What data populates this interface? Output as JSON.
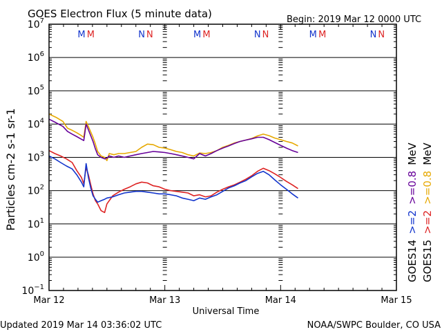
{
  "header": {
    "title": "GOES Electron Flux (5 minute data)",
    "begin": "Begin: 2019 Mar 12 0000 UTC"
  },
  "footer": {
    "updated": "Updated 2019 Mar 14 03:36:02 UTC",
    "credit": "NOAA/SWPC Boulder, CO USA"
  },
  "colors": {
    "goes14_e08": "#660099",
    "goes15_e08": "#e6a800",
    "goes14_e2": "#1133cc",
    "goes15_e2": "#dd2222",
    "grid": "#000000",
    "threshold": "#000000"
  },
  "chart_data": {
    "type": "line",
    "title": "GOES Electron Flux (5 minute data)",
    "xlabel": "Universal Time",
    "ylabel": "Particles cm-2 s-1 sr-1",
    "x_unit": "days since 2019 Mar 12 00:00 UTC",
    "xlim": [
      0,
      3
    ],
    "ylim_log10": [
      -1,
      7
    ],
    "x_ticks": [
      {
        "x": 0,
        "label": "Mar 12"
      },
      {
        "x": 1,
        "label": "Mar 13"
      },
      {
        "x": 2,
        "label": "Mar 14"
      },
      {
        "x": 3,
        "label": "Mar 15"
      }
    ],
    "y_ticks": [
      {
        "exp": 7,
        "base": "10",
        "sup": "7"
      },
      {
        "exp": 6,
        "base": "10",
        "sup": "6"
      },
      {
        "exp": 5,
        "base": "10",
        "sup": "5"
      },
      {
        "exp": 4,
        "base": "10",
        "sup": "4"
      },
      {
        "exp": 3,
        "base": "10",
        "sup": "3"
      },
      {
        "exp": 2,
        "base": "10",
        "sup": "2"
      },
      {
        "exp": 1,
        "base": "10",
        "sup": "1"
      },
      {
        "exp": 0,
        "base": "10",
        "sup": "0"
      },
      {
        "exp": -1,
        "base": "10",
        "sup": "−1"
      }
    ],
    "threshold": 1000,
    "markers": [
      {
        "text": "M",
        "x": 0.28,
        "color_key": "goes14_e2"
      },
      {
        "text": "M",
        "x": 0.36,
        "color_key": "goes15_e2"
      },
      {
        "text": "N",
        "x": 0.8,
        "color_key": "goes14_e2"
      },
      {
        "text": "N",
        "x": 0.87,
        "color_key": "goes15_e2"
      },
      {
        "text": "M",
        "x": 1.28,
        "color_key": "goes14_e2"
      },
      {
        "text": "M",
        "x": 1.36,
        "color_key": "goes15_e2"
      },
      {
        "text": "N",
        "x": 1.8,
        "color_key": "goes14_e2"
      },
      {
        "text": "N",
        "x": 1.87,
        "color_key": "goes15_e2"
      },
      {
        "text": "M",
        "x": 2.28,
        "color_key": "goes14_e2"
      },
      {
        "text": "M",
        "x": 2.36,
        "color_key": "goes15_e2"
      },
      {
        "text": "N",
        "x": 2.8,
        "color_key": "goes14_e2"
      },
      {
        "text": "N",
        "x": 2.87,
        "color_key": "goes15_e2"
      }
    ],
    "legend": [
      {
        "lines": [
          {
            "text": "GOES14",
            "color_key": "threshold"
          },
          {
            "text": ">=2",
            "color_key": "goes14_e2"
          },
          {
            "text": ">=0.8",
            "color_key": "goes14_e08"
          },
          {
            "text": "MeV",
            "color_key": "threshold"
          }
        ]
      },
      {
        "lines": [
          {
            "text": "GOES15",
            "color_key": "threshold"
          },
          {
            "text": ">=2",
            "color_key": "goes15_e2"
          },
          {
            "text": ">=0.8",
            "color_key": "goes15_e08"
          },
          {
            "text": "MeV",
            "color_key": "threshold"
          }
        ]
      }
    ],
    "series": [
      {
        "name": "GOES15 >=0.8 MeV",
        "color_key": "goes15_e08",
        "points": [
          [
            0.0,
            20000
          ],
          [
            0.06,
            16000
          ],
          [
            0.12,
            12000
          ],
          [
            0.16,
            7500
          ],
          [
            0.2,
            6500
          ],
          [
            0.24,
            5500
          ],
          [
            0.28,
            4500
          ],
          [
            0.3,
            4000
          ],
          [
            0.32,
            12000
          ],
          [
            0.35,
            7000
          ],
          [
            0.38,
            4000
          ],
          [
            0.4,
            2500
          ],
          [
            0.42,
            1500
          ],
          [
            0.45,
            1100
          ],
          [
            0.48,
            1000
          ],
          [
            0.5,
            800
          ],
          [
            0.52,
            1300
          ],
          [
            0.56,
            1200
          ],
          [
            0.6,
            1300
          ],
          [
            0.65,
            1300
          ],
          [
            0.7,
            1400
          ],
          [
            0.75,
            1500
          ],
          [
            0.8,
            2000
          ],
          [
            0.85,
            2500
          ],
          [
            0.9,
            2400
          ],
          [
            0.95,
            2000
          ],
          [
            1.0,
            1900
          ],
          [
            1.05,
            1700
          ],
          [
            1.1,
            1500
          ],
          [
            1.15,
            1400
          ],
          [
            1.2,
            1200
          ],
          [
            1.25,
            1100
          ],
          [
            1.3,
            1350
          ],
          [
            1.35,
            1300
          ],
          [
            1.4,
            1400
          ],
          [
            1.45,
            1600
          ],
          [
            1.5,
            2000
          ],
          [
            1.55,
            2300
          ],
          [
            1.6,
            2700
          ],
          [
            1.65,
            3000
          ],
          [
            1.7,
            3300
          ],
          [
            1.75,
            3700
          ],
          [
            1.8,
            4400
          ],
          [
            1.85,
            5000
          ],
          [
            1.9,
            4500
          ],
          [
            1.95,
            3800
          ],
          [
            2.0,
            3400
          ],
          [
            2.05,
            3000
          ],
          [
            2.1,
            2700
          ],
          [
            2.15,
            2200
          ]
        ]
      },
      {
        "name": "GOES14 >=0.8 MeV",
        "color_key": "goes14_e08",
        "points": [
          [
            0.0,
            14000
          ],
          [
            0.06,
            11000
          ],
          [
            0.12,
            8500
          ],
          [
            0.16,
            6000
          ],
          [
            0.2,
            5000
          ],
          [
            0.24,
            4200
          ],
          [
            0.28,
            3500
          ],
          [
            0.3,
            3200
          ],
          [
            0.32,
            10000
          ],
          [
            0.35,
            5500
          ],
          [
            0.38,
            3000
          ],
          [
            0.4,
            1800
          ],
          [
            0.42,
            1200
          ],
          [
            0.45,
            1000
          ],
          [
            0.48,
            900
          ],
          [
            0.5,
            950
          ],
          [
            0.52,
            1100
          ],
          [
            0.56,
            1000
          ],
          [
            0.6,
            1100
          ],
          [
            0.65,
            1000
          ],
          [
            0.7,
            1100
          ],
          [
            0.75,
            1200
          ],
          [
            0.8,
            1300
          ],
          [
            0.85,
            1400
          ],
          [
            0.9,
            1500
          ],
          [
            0.95,
            1450
          ],
          [
            1.0,
            1400
          ],
          [
            1.05,
            1300
          ],
          [
            1.1,
            1200
          ],
          [
            1.15,
            1100
          ],
          [
            1.2,
            1000
          ],
          [
            1.25,
            900
          ],
          [
            1.3,
            1300
          ],
          [
            1.35,
            1100
          ],
          [
            1.4,
            1300
          ],
          [
            1.45,
            1600
          ],
          [
            1.5,
            1900
          ],
          [
            1.55,
            2200
          ],
          [
            1.6,
            2600
          ],
          [
            1.65,
            3000
          ],
          [
            1.7,
            3300
          ],
          [
            1.75,
            3600
          ],
          [
            1.8,
            4000
          ],
          [
            1.85,
            4000
          ],
          [
            1.9,
            3400
          ],
          [
            1.95,
            2800
          ],
          [
            2.0,
            2300
          ],
          [
            2.05,
            1900
          ],
          [
            2.1,
            1600
          ],
          [
            2.15,
            1400
          ]
        ]
      },
      {
        "name": "GOES15 >=2 MeV",
        "color_key": "goes15_e2",
        "points": [
          [
            0.0,
            1600
          ],
          [
            0.05,
            1300
          ],
          [
            0.1,
            1100
          ],
          [
            0.15,
            900
          ],
          [
            0.2,
            700
          ],
          [
            0.24,
            400
          ],
          [
            0.28,
            250
          ],
          [
            0.3,
            160
          ],
          [
            0.32,
            500
          ],
          [
            0.34,
            300
          ],
          [
            0.36,
            150
          ],
          [
            0.38,
            80
          ],
          [
            0.4,
            50
          ],
          [
            0.42,
            40
          ],
          [
            0.45,
            25
          ],
          [
            0.48,
            22
          ],
          [
            0.5,
            40
          ],
          [
            0.55,
            70
          ],
          [
            0.6,
            90
          ],
          [
            0.65,
            110
          ],
          [
            0.7,
            130
          ],
          [
            0.75,
            160
          ],
          [
            0.8,
            180
          ],
          [
            0.85,
            170
          ],
          [
            0.9,
            140
          ],
          [
            0.95,
            130
          ],
          [
            1.0,
            110
          ],
          [
            1.05,
            100
          ],
          [
            1.1,
            95
          ],
          [
            1.15,
            90
          ],
          [
            1.2,
            85
          ],
          [
            1.25,
            70
          ],
          [
            1.3,
            75
          ],
          [
            1.35,
            65
          ],
          [
            1.4,
            70
          ],
          [
            1.45,
            90
          ],
          [
            1.5,
            110
          ],
          [
            1.55,
            130
          ],
          [
            1.6,
            150
          ],
          [
            1.65,
            180
          ],
          [
            1.7,
            220
          ],
          [
            1.75,
            280
          ],
          [
            1.8,
            380
          ],
          [
            1.85,
            470
          ],
          [
            1.9,
            400
          ],
          [
            1.95,
            320
          ],
          [
            2.0,
            250
          ],
          [
            2.05,
            190
          ],
          [
            2.1,
            150
          ],
          [
            2.15,
            115
          ]
        ]
      },
      {
        "name": "GOES14 >=2 MeV",
        "color_key": "goes14_e2",
        "points": [
          [
            0.0,
            1100
          ],
          [
            0.05,
            900
          ],
          [
            0.1,
            700
          ],
          [
            0.15,
            550
          ],
          [
            0.2,
            450
          ],
          [
            0.24,
            300
          ],
          [
            0.28,
            180
          ],
          [
            0.3,
            130
          ],
          [
            0.32,
            650
          ],
          [
            0.34,
            250
          ],
          [
            0.36,
            120
          ],
          [
            0.38,
            70
          ],
          [
            0.4,
            55
          ],
          [
            0.42,
            45
          ],
          [
            0.45,
            50
          ],
          [
            0.48,
            55
          ],
          [
            0.5,
            60
          ],
          [
            0.55,
            65
          ],
          [
            0.6,
            75
          ],
          [
            0.65,
            85
          ],
          [
            0.7,
            90
          ],
          [
            0.75,
            95
          ],
          [
            0.8,
            95
          ],
          [
            0.85,
            90
          ],
          [
            0.9,
            85
          ],
          [
            0.95,
            80
          ],
          [
            1.0,
            80
          ],
          [
            1.05,
            75
          ],
          [
            1.1,
            70
          ],
          [
            1.15,
            60
          ],
          [
            1.2,
            55
          ],
          [
            1.25,
            50
          ],
          [
            1.3,
            60
          ],
          [
            1.35,
            55
          ],
          [
            1.4,
            65
          ],
          [
            1.45,
            75
          ],
          [
            1.5,
            95
          ],
          [
            1.55,
            120
          ],
          [
            1.6,
            140
          ],
          [
            1.65,
            170
          ],
          [
            1.7,
            200
          ],
          [
            1.75,
            260
          ],
          [
            1.8,
            330
          ],
          [
            1.85,
            380
          ],
          [
            1.9,
            300
          ],
          [
            1.95,
            210
          ],
          [
            2.0,
            150
          ],
          [
            2.05,
            110
          ],
          [
            2.1,
            80
          ],
          [
            2.15,
            60
          ]
        ]
      }
    ]
  }
}
